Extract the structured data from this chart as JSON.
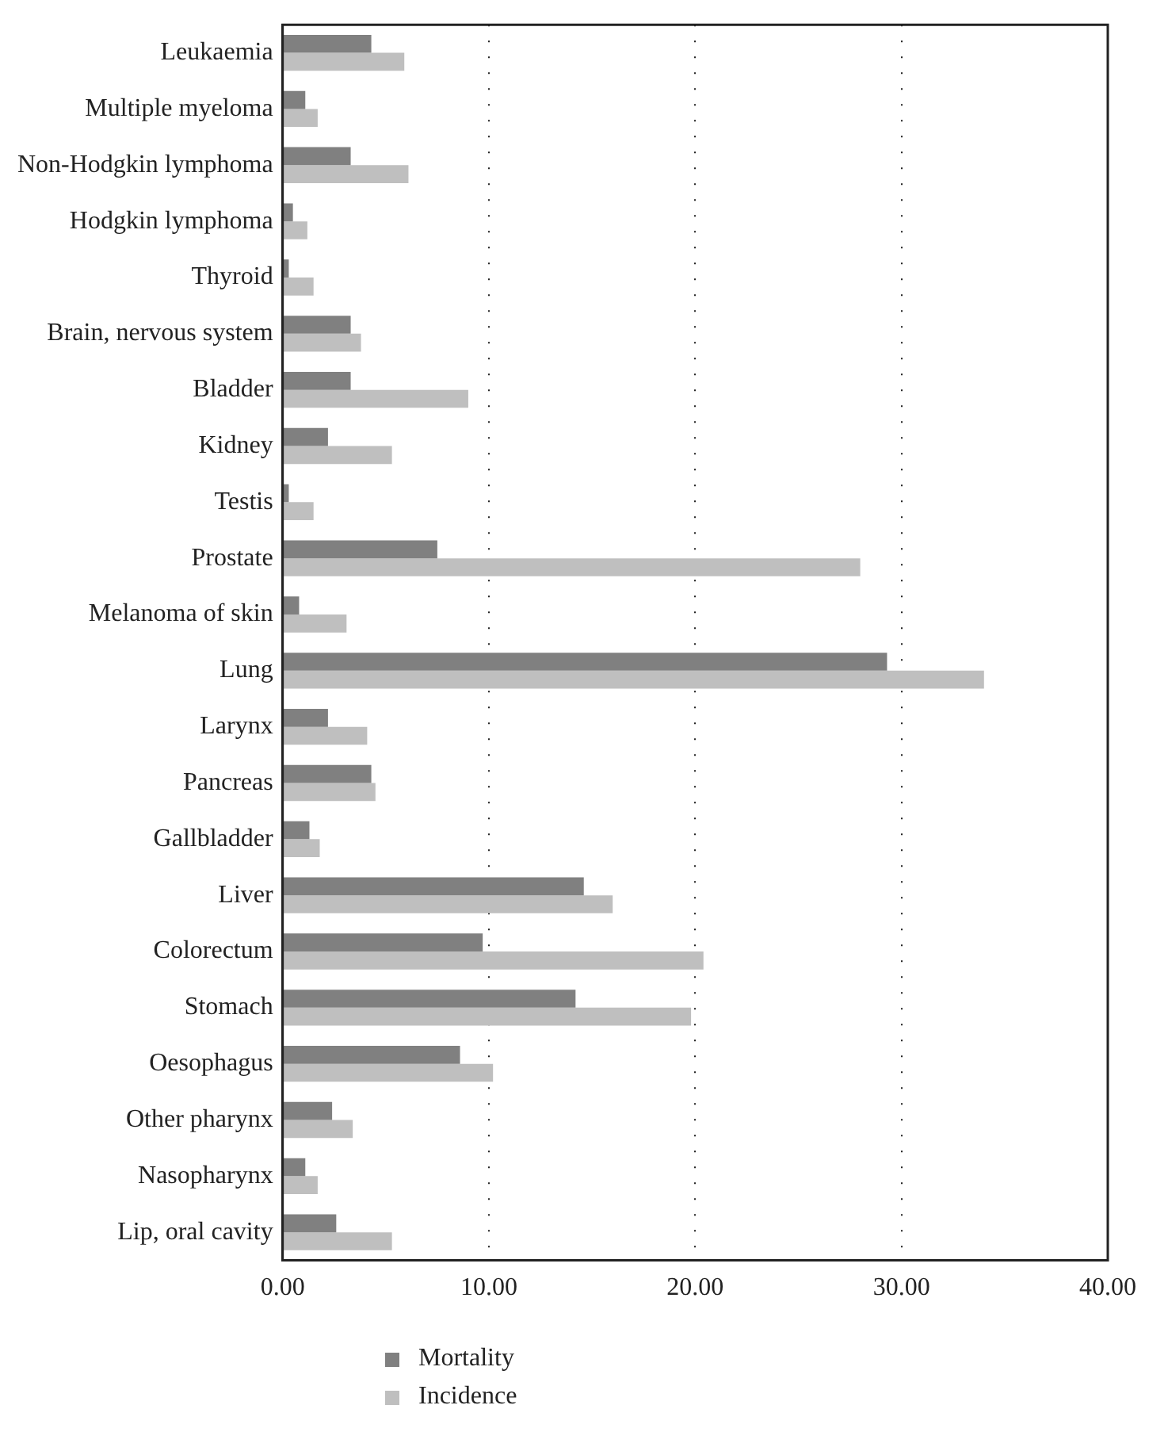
{
  "chart_data": {
    "type": "bar",
    "orientation": "horizontal",
    "categories": [
      "Leukaemia",
      "Multiple myeloma",
      "Non-Hodgkin lymphoma",
      "Hodgkin lymphoma",
      "Thyroid",
      "Brain, nervous system",
      "Bladder",
      "Kidney",
      "Testis",
      "Prostate",
      "Melanoma of skin",
      "Lung",
      "Larynx",
      "Pancreas",
      "Gallbladder",
      "Liver",
      "Colorectum",
      "Stomach",
      "Oesophagus",
      "Other pharynx",
      "Nasopharynx",
      "Lip, oral cavity"
    ],
    "series": [
      {
        "name": "Mortality",
        "color": "#808080",
        "values": [
          4.3,
          1.1,
          3.3,
          0.5,
          0.3,
          3.3,
          3.3,
          2.2,
          0.3,
          7.5,
          0.8,
          29.3,
          2.2,
          4.3,
          1.3,
          14.6,
          9.7,
          14.2,
          8.6,
          2.4,
          1.1,
          2.6
        ]
      },
      {
        "name": "Incidence",
        "color": "#bfbfbf",
        "values": [
          5.9,
          1.7,
          6.1,
          1.2,
          1.5,
          3.8,
          9.0,
          5.3,
          1.5,
          28.0,
          3.1,
          34.0,
          4.1,
          4.5,
          1.8,
          16.0,
          20.4,
          19.8,
          10.2,
          3.4,
          1.7,
          5.3
        ]
      }
    ],
    "xlim": [
      0,
      40
    ],
    "xticks": [
      {
        "value": 0,
        "label": "0.00"
      },
      {
        "value": 10,
        "label": "10.00"
      },
      {
        "value": 20,
        "label": "20.00"
      },
      {
        "value": 30,
        "label": "30.00"
      },
      {
        "value": 40,
        "label": "40.00"
      }
    ],
    "grid": "x",
    "legend": "bottom"
  }
}
